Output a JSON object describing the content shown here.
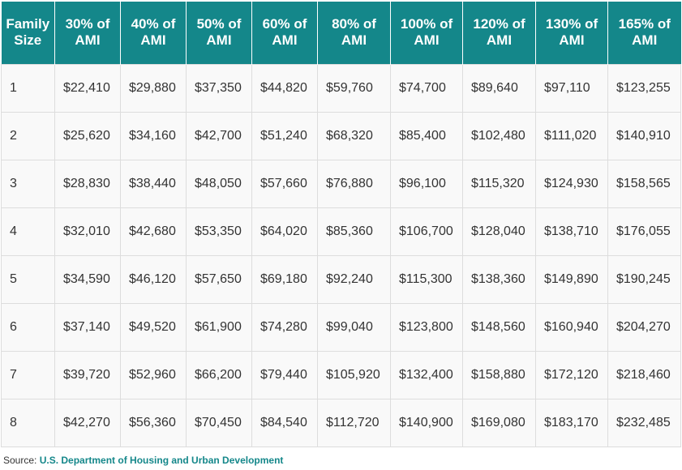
{
  "table": {
    "headers": [
      "Family Size",
      "30% of AMI",
      "40% of AMI",
      "50% of AMI",
      "60% of AMI",
      "80% of AMI",
      "100% of AMI",
      "120% of AMI",
      "130% of AMI",
      "165% of AMI"
    ],
    "rows": [
      [
        "1",
        "$22,410",
        "$29,880",
        "$37,350",
        "$44,820",
        "$59,760",
        "$74,700",
        "$89,640",
        "$97,110",
        "$123,255"
      ],
      [
        "2",
        "$25,620",
        "$34,160",
        "$42,700",
        "$51,240",
        "$68,320",
        "$85,400",
        "$102,480",
        "$111,020",
        "$140,910"
      ],
      [
        "3",
        "$28,830",
        "$38,440",
        "$48,050",
        "$57,660",
        "$76,880",
        "$96,100",
        "$115,320",
        "$124,930",
        "$158,565"
      ],
      [
        "4",
        "$32,010",
        "$42,680",
        "$53,350",
        "$64,020",
        "$85,360",
        "$106,700",
        "$128,040",
        "$138,710",
        "$176,055"
      ],
      [
        "5",
        "$34,590",
        "$46,120",
        "$57,650",
        "$69,180",
        "$92,240",
        "$115,300",
        "$138,360",
        "$149,890",
        "$190,245"
      ],
      [
        "6",
        "$37,140",
        "$49,520",
        "$61,900",
        "$74,280",
        "$99,040",
        "$123,800",
        "$148,560",
        "$160,940",
        "$204,270"
      ],
      [
        "7",
        "$39,720",
        "$52,960",
        "$66,200",
        "$79,440",
        "$105,920",
        "$132,400",
        "$158,880",
        "$172,120",
        "$218,460"
      ],
      [
        "8",
        "$42,270",
        "$56,360",
        "$70,450",
        "$84,540",
        "$112,720",
        "$140,900",
        "$169,080",
        "$183,170",
        "$232,485"
      ]
    ]
  },
  "source": {
    "label": "Source:",
    "link_text": "U.S. Department of Housing and Urban Development"
  },
  "colors": {
    "header_background": "#14878a",
    "header_text": "#ffffff",
    "cell_background": "#f9f9f9",
    "border": "#dddddd",
    "link": "#14878a"
  }
}
